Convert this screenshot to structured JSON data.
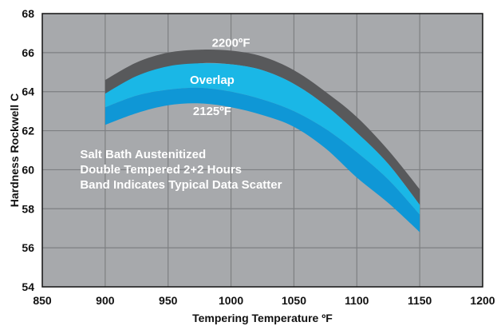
{
  "chart_data": {
    "type": "area",
    "xlabel": "Tempering Temperature ºF",
    "ylabel": "Hardness Rockwell C",
    "xlim": [
      850,
      1200
    ],
    "ylim": [
      54,
      68
    ],
    "x_ticks": [
      850,
      900,
      950,
      1000,
      1050,
      1100,
      1150,
      1200
    ],
    "y_ticks": [
      54,
      56,
      58,
      60,
      62,
      64,
      66,
      68
    ],
    "grid": true,
    "x": [
      900,
      925,
      950,
      975,
      1000,
      1025,
      1050,
      1075,
      1100,
      1125,
      1150
    ],
    "series": [
      {
        "name": "2200ºF",
        "upper": [
          64.6,
          65.5,
          66.0,
          66.15,
          66.1,
          65.8,
          65.1,
          64.0,
          62.7,
          61.0,
          59.0
        ],
        "lower": [
          63.6,
          64.5,
          65.1,
          65.45,
          65.4,
          65.1,
          64.4,
          63.3,
          61.9,
          60.3,
          58.2
        ],
        "color": "#58595b"
      },
      {
        "name": "Overlap",
        "upper": [
          63.9,
          64.8,
          65.3,
          65.45,
          65.4,
          65.1,
          64.4,
          63.3,
          61.9,
          60.3,
          58.2
        ],
        "lower": [
          63.2,
          63.8,
          64.1,
          64.2,
          64.0,
          63.6,
          63.0,
          62.1,
          60.9,
          59.5,
          57.7
        ],
        "color": "#1ab7e6"
      },
      {
        "name": "2125ºF",
        "upper": [
          63.2,
          63.8,
          64.1,
          64.2,
          64.0,
          63.6,
          63.0,
          62.1,
          60.9,
          59.5,
          57.7
        ],
        "lower": [
          62.3,
          62.9,
          63.3,
          63.4,
          63.2,
          62.8,
          62.2,
          61.1,
          59.6,
          58.3,
          56.8
        ],
        "color": "#0f97d6"
      }
    ],
    "band_labels": [
      {
        "text": "2200ºF",
        "x": 1000,
        "y": 66.3
      },
      {
        "text": "Overlap",
        "x": 985,
        "y": 64.4
      },
      {
        "text": "2125ºF",
        "x": 985,
        "y": 62.8
      }
    ],
    "annotations": [
      "Salt Bath Austenitized",
      "Double Tempered 2+2 Hours",
      "Band Indicates Typical Data Scatter"
    ],
    "colors": {
      "plot_background": "#a7a9ac",
      "grid": "#7d7f82",
      "text": "#111111",
      "label_text": "#ffffff"
    }
  }
}
